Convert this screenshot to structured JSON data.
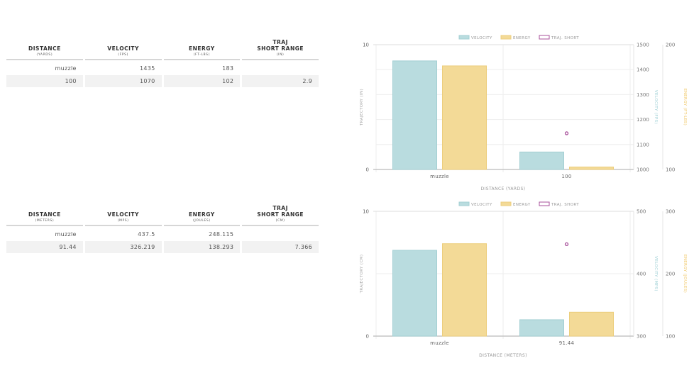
{
  "tables": [
    {
      "headers": [
        {
          "title": "DISTANCE",
          "unit": "(YARDS)"
        },
        {
          "title": "VELOCITY",
          "unit": "(FPS)"
        },
        {
          "title": "ENERGY",
          "unit": "(FT-LBS)"
        },
        {
          "title": "TRAJ\nSHORT RANGE",
          "unit": "(IN)"
        }
      ],
      "rows": [
        [
          "muzzle",
          "1435",
          "183",
          ""
        ],
        [
          "100",
          "1070",
          "102",
          "2.9"
        ]
      ]
    },
    {
      "headers": [
        {
          "title": "DISTANCE",
          "unit": "(METERS)"
        },
        {
          "title": "VELOCITY",
          "unit": "(MPS)"
        },
        {
          "title": "ENERGY",
          "unit": "(JOULES)"
        },
        {
          "title": "TRAJ\nSHORT RANGE",
          "unit": "(CM)"
        }
      ],
      "rows": [
        [
          "muzzle",
          "437.5",
          "248.115",
          ""
        ],
        [
          "91.44",
          "326.219",
          "138.293",
          "7.366"
        ]
      ]
    }
  ],
  "colors": {
    "velocity": "#b9dcdf",
    "velocity_border": "#a3cfd3",
    "energy": "#f3da97",
    "energy_border": "#ecce7d",
    "traj": "#a8519b",
    "velocity_label": "#9fd0d6",
    "energy_label": "#f0c766"
  },
  "chart_data": [
    {
      "type": "bar",
      "title": "",
      "categories": [
        "muzzle",
        "100"
      ],
      "xlabel": "DISTANCE (YARDS)",
      "legend": [
        "VELOCITY",
        "ENERGY",
        "TRAJ. SHORT"
      ],
      "legend_position": "top-center",
      "grid": true,
      "axes": {
        "traj": {
          "label": "TRAJECTORY (IN)",
          "range": [
            0,
            10
          ],
          "ticks": [
            "0",
            "10"
          ]
        },
        "velocity": {
          "label": "VELOCITY (FPS)",
          "range": [
            1000,
            1500
          ],
          "ticks": [
            "1000",
            "1100",
            "1200",
            "1300",
            "1400",
            "1500"
          ]
        },
        "energy": {
          "label": "ENERGY (FT-LBS)",
          "range": [
            100,
            200
          ],
          "ticks": [
            "100",
            "200"
          ]
        }
      },
      "series": [
        {
          "name": "VELOCITY",
          "kind": "bar",
          "axis": "velocity",
          "values": [
            1435,
            1070
          ]
        },
        {
          "name": "ENERGY",
          "kind": "bar",
          "axis": "energy",
          "values": [
            183,
            102
          ]
        },
        {
          "name": "TRAJ. SHORT",
          "kind": "point",
          "axis": "traj",
          "values": [
            null,
            2.9
          ]
        }
      ]
    },
    {
      "type": "bar",
      "title": "",
      "categories": [
        "muzzle",
        "91.44"
      ],
      "xlabel": "DISTANCE (METERS)",
      "legend": [
        "VELOCITY",
        "ENERGY",
        "TRAJ. SHORT"
      ],
      "legend_position": "top-center",
      "grid": true,
      "axes": {
        "traj": {
          "label": "TRAJECTORY (CM)",
          "range": [
            0,
            10
          ],
          "ticks": [
            "0",
            "10"
          ]
        },
        "velocity": {
          "label": "VELOCITY (MPS)",
          "range": [
            300,
            500
          ],
          "ticks": [
            "300",
            "400",
            "500"
          ]
        },
        "energy": {
          "label": "ENERGY (JOULES)",
          "range": [
            100,
            300
          ],
          "ticks": [
            "100",
            "200",
            "300"
          ]
        }
      },
      "series": [
        {
          "name": "VELOCITY",
          "kind": "bar",
          "axis": "velocity",
          "values": [
            437.5,
            326.219
          ]
        },
        {
          "name": "ENERGY",
          "kind": "bar",
          "axis": "energy",
          "values": [
            248.115,
            138.293
          ]
        },
        {
          "name": "TRAJ. SHORT",
          "kind": "point",
          "axis": "traj",
          "values": [
            null,
            7.366
          ]
        }
      ]
    }
  ]
}
